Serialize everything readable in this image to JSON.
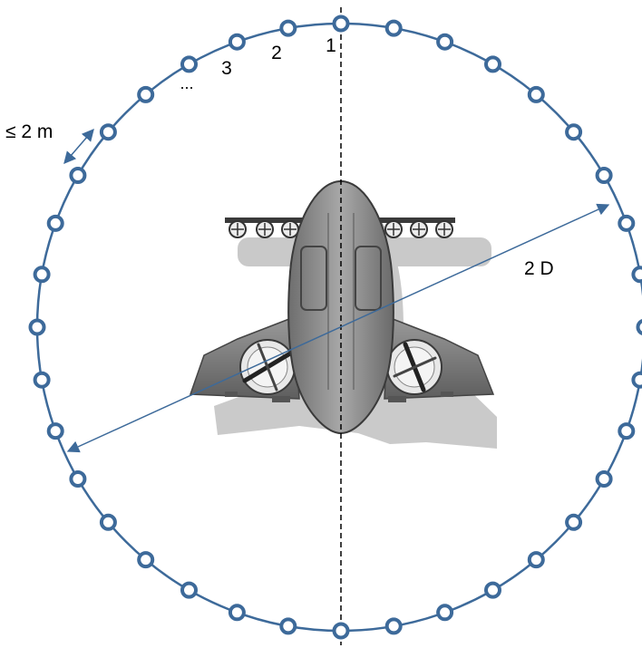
{
  "labels": {
    "mic_1": "1",
    "mic_2": "2",
    "mic_3": "3",
    "ellipsis": "...",
    "spacing": "≤ 2 m",
    "diameter": "2 D"
  },
  "colors": {
    "ring": "#3d6a9a",
    "aircraft_fill": "#8c8c8c",
    "aircraft_dark": "#5a5a5a",
    "shadow": "#c4c4c4",
    "centerline": "#000000"
  },
  "array": {
    "microphone_count": 36,
    "first_microphone": "1"
  }
}
